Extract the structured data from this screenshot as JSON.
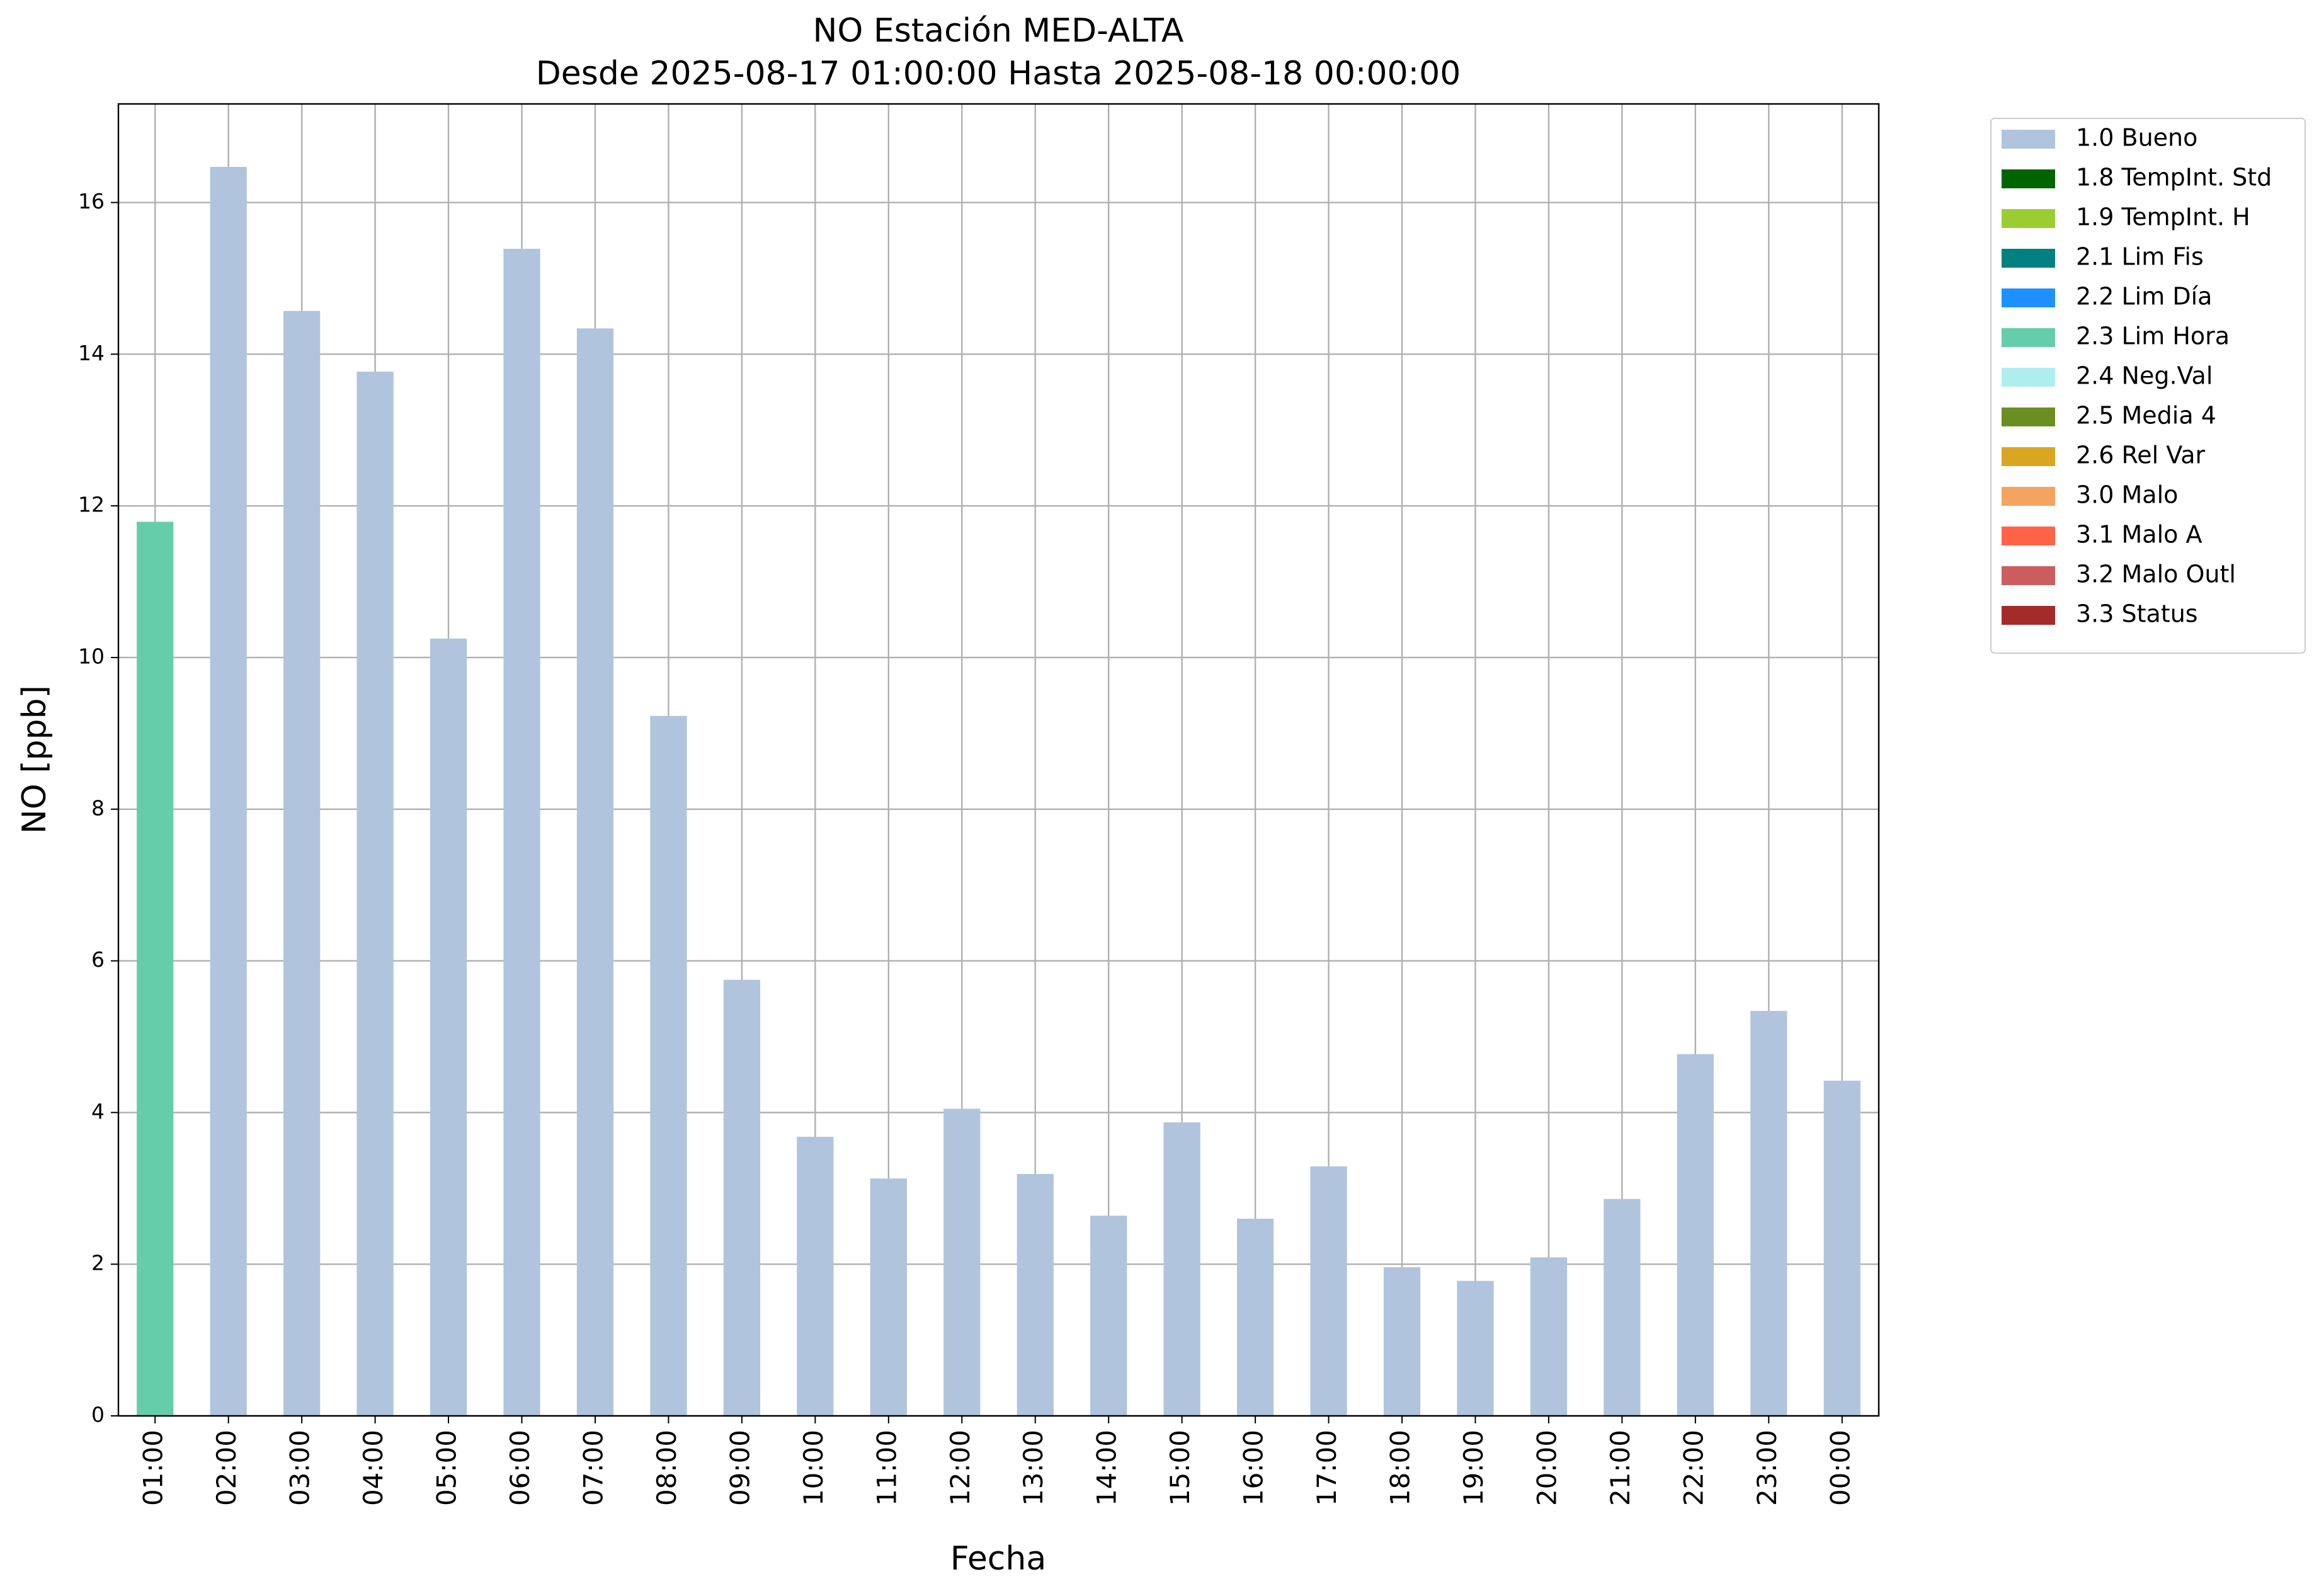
{
  "chart_data": {
    "type": "stacked_bar",
    "title": "NO Estación MED-ALTA",
    "subtitle": "Desde 2025-08-17 01:00:00 Hasta 2025-08-18 00:00:00",
    "x_label": "Fecha",
    "y_label": "NO [ppb]",
    "categories": [
      "01:00",
      "02:00",
      "03:00",
      "04:00",
      "05:00",
      "06:00",
      "07:00",
      "08:00",
      "09:00",
      "10:00",
      "11:00",
      "12:00",
      "13:00",
      "14:00",
      "15:00",
      "16:00",
      "17:00",
      "18:00",
      "19:00",
      "20:00",
      "21:00",
      "22:00",
      "23:00",
      "00:00"
    ],
    "series": [
      {
        "name": "1.0 Bueno",
        "color": "#b0c4de",
        "values": [
          null,
          16.47,
          14.57,
          13.77,
          10.25,
          15.39,
          14.34,
          9.23,
          5.75,
          3.68,
          3.13,
          4.05,
          3.19,
          2.64,
          3.87,
          2.6,
          3.29,
          1.96,
          1.78,
          2.09,
          2.86,
          4.77,
          5.34,
          4.42
        ]
      },
      {
        "name": "1.8 TempInt. Std",
        "color": "#006400",
        "values": [
          null,
          null,
          null,
          null,
          null,
          null,
          null,
          null,
          null,
          null,
          null,
          null,
          null,
          null,
          null,
          null,
          null,
          null,
          null,
          null,
          null,
          null,
          null,
          null
        ]
      },
      {
        "name": "1.9 TempInt. H",
        "color": "#9acd32",
        "values": [
          null,
          null,
          null,
          null,
          null,
          null,
          null,
          null,
          null,
          null,
          null,
          null,
          null,
          null,
          null,
          null,
          null,
          null,
          null,
          null,
          null,
          null,
          null,
          null
        ]
      },
      {
        "name": "2.1 Lim Fis",
        "color": "#008080",
        "values": [
          null,
          null,
          null,
          null,
          null,
          null,
          null,
          null,
          null,
          null,
          null,
          null,
          null,
          null,
          null,
          null,
          null,
          null,
          null,
          null,
          null,
          null,
          null,
          null
        ]
      },
      {
        "name": "2.2 Lim Día",
        "color": "#1e90ff",
        "values": [
          null,
          null,
          null,
          null,
          null,
          null,
          null,
          null,
          null,
          null,
          null,
          null,
          null,
          null,
          null,
          null,
          null,
          null,
          null,
          null,
          null,
          null,
          null,
          null
        ]
      },
      {
        "name": "2.3 Lim Hora",
        "color": "#66cdaa",
        "values": [
          11.79,
          null,
          null,
          null,
          null,
          null,
          null,
          null,
          null,
          null,
          null,
          null,
          null,
          null,
          null,
          null,
          null,
          null,
          null,
          null,
          null,
          null,
          null,
          null
        ]
      },
      {
        "name": "2.4 Neg.Val",
        "color": "#afeeee",
        "values": [
          null,
          null,
          null,
          null,
          null,
          null,
          null,
          null,
          null,
          null,
          null,
          null,
          null,
          null,
          null,
          null,
          null,
          null,
          null,
          null,
          null,
          null,
          null,
          null
        ]
      },
      {
        "name": "2.5 Media 4",
        "color": "#6b8e23",
        "values": [
          null,
          null,
          null,
          null,
          null,
          null,
          null,
          null,
          null,
          null,
          null,
          null,
          null,
          null,
          null,
          null,
          null,
          null,
          null,
          null,
          null,
          null,
          null,
          null
        ]
      },
      {
        "name": "2.6 Rel Var",
        "color": "#daa520",
        "values": [
          null,
          null,
          null,
          null,
          null,
          null,
          null,
          null,
          null,
          null,
          null,
          null,
          null,
          null,
          null,
          null,
          null,
          null,
          null,
          null,
          null,
          null,
          null,
          null
        ]
      },
      {
        "name": "3.0 Malo",
        "color": "#f4a460",
        "values": [
          null,
          null,
          null,
          null,
          null,
          null,
          null,
          null,
          null,
          null,
          null,
          null,
          null,
          null,
          null,
          null,
          null,
          null,
          null,
          null,
          null,
          null,
          null,
          null
        ]
      },
      {
        "name": "3.1 Malo A",
        "color": "#ff6347",
        "values": [
          null,
          null,
          null,
          null,
          null,
          null,
          null,
          null,
          null,
          null,
          null,
          null,
          null,
          null,
          null,
          null,
          null,
          null,
          null,
          null,
          null,
          null,
          null,
          null
        ]
      },
      {
        "name": "3.2 Malo Outl",
        "color": "#cd5c5c",
        "values": [
          null,
          null,
          null,
          null,
          null,
          null,
          null,
          null,
          null,
          null,
          null,
          null,
          null,
          null,
          null,
          null,
          null,
          null,
          null,
          null,
          null,
          null,
          null,
          null
        ]
      },
      {
        "name": "3.3 Status",
        "color": "#a52a2a",
        "values": [
          null,
          null,
          null,
          null,
          null,
          null,
          null,
          null,
          null,
          null,
          null,
          null,
          null,
          null,
          null,
          null,
          null,
          null,
          null,
          null,
          null,
          null,
          null,
          null
        ]
      }
    ],
    "ylim": [
      0,
      17.3
    ],
    "yticks": [
      0,
      2,
      4,
      6,
      8,
      10,
      12,
      14,
      16
    ],
    "grid": true,
    "legend": "outside"
  }
}
